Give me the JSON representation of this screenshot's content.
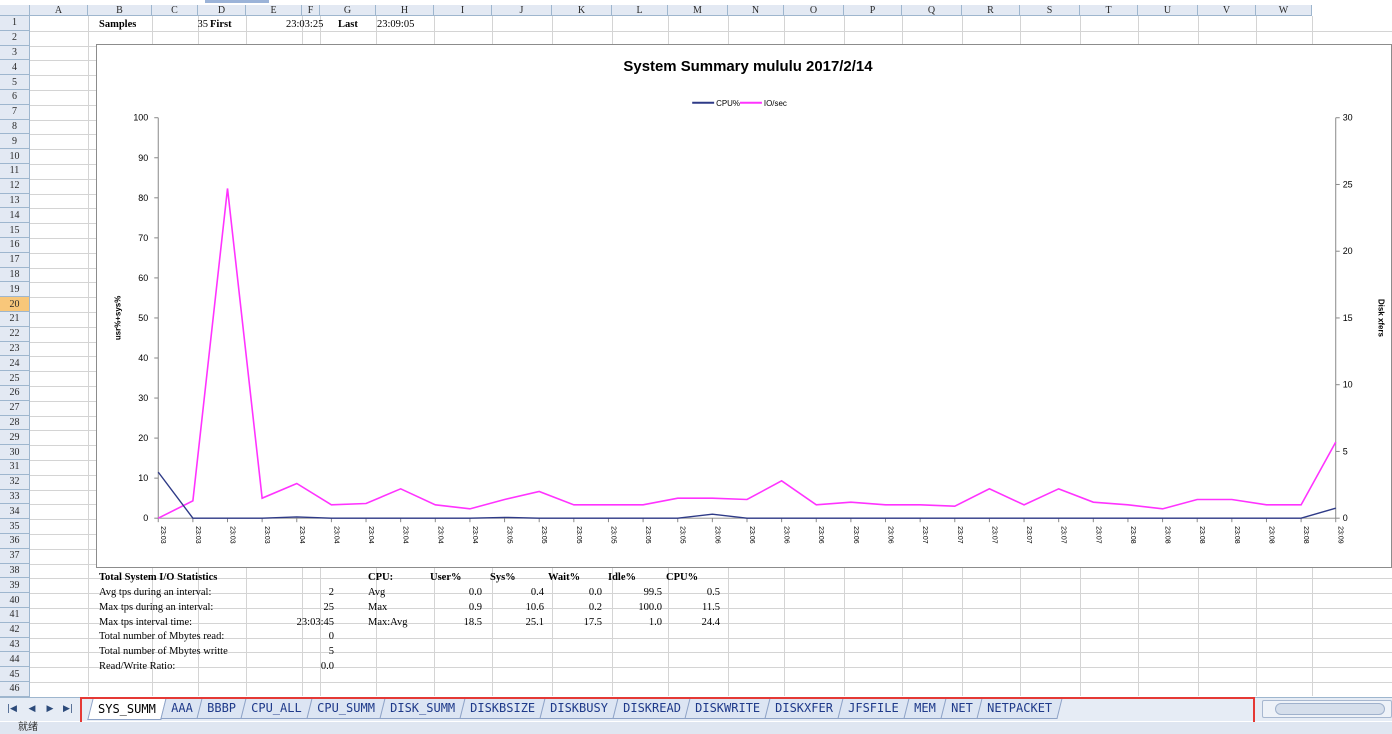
{
  "sheet": {
    "columns": [
      "A",
      "B",
      "C",
      "D",
      "E",
      "F",
      "G",
      "H",
      "I",
      "J",
      "K",
      "L",
      "M",
      "N",
      "O",
      "P",
      "Q",
      "R",
      "S",
      "T",
      "U",
      "V",
      "W"
    ],
    "rows": [
      "1",
      "2",
      "3",
      "4",
      "5",
      "6",
      "7",
      "8",
      "9",
      "10",
      "11",
      "12",
      "13",
      "14",
      "15",
      "16",
      "17",
      "18",
      "19",
      "20",
      "21",
      "22",
      "23",
      "24",
      "25",
      "26",
      "27",
      "28",
      "29",
      "30",
      "31",
      "32",
      "33",
      "34",
      "35",
      "36",
      "37",
      "38",
      "39",
      "40",
      "41",
      "42",
      "43",
      "44",
      "45",
      "46"
    ],
    "selected_row": "20"
  },
  "header_row": {
    "samples_label": "Samples",
    "samples_value": "35",
    "first_label": "First",
    "first_value": "23:03:25",
    "last_label": "Last",
    "last_value": "23:09:05"
  },
  "io_stats": {
    "title": "Total System I/O Statistics",
    "rows": [
      {
        "label": "Avg tps during an interval:",
        "value": "2"
      },
      {
        "label": "Max tps during an interval:",
        "value": "25"
      },
      {
        "label": "Max tps interval time:",
        "value": "23:03:45"
      },
      {
        "label": "Total number of Mbytes read:",
        "value": "0"
      },
      {
        "label": "Total number of Mbytes writte",
        "value": "5"
      },
      {
        "label": "Read/Write Ratio:",
        "value": "0.0"
      }
    ]
  },
  "cpu_table": {
    "headers": [
      "CPU:",
      "User%",
      "Sys%",
      "Wait%",
      "Idle%",
      "CPU%"
    ],
    "rows": [
      [
        "Avg",
        "0.0",
        "0.4",
        "0.0",
        "99.5",
        "0.5"
      ],
      [
        "Max",
        "0.9",
        "10.6",
        "0.2",
        "100.0",
        "11.5"
      ],
      [
        "Max:Avg",
        "18.5",
        "25.1",
        "17.5",
        "1.0",
        "24.4"
      ]
    ]
  },
  "chart_data": {
    "type": "line",
    "title": "System Summary mululu  2017/2/14",
    "ylabel": "usr%+sys%",
    "y2label": "Disk xfers",
    "ylim": [
      0,
      100
    ],
    "y2lim": [
      0,
      30
    ],
    "yticks": [
      "0",
      "10",
      "20",
      "30",
      "40",
      "50",
      "60",
      "70",
      "80",
      "90",
      "100"
    ],
    "y2ticks": [
      "0",
      "5",
      "10",
      "15",
      "20",
      "25",
      "30"
    ],
    "legend_position": "top-center",
    "categories": [
      "23:03",
      "23:03",
      "23:03",
      "23:03",
      "23:04",
      "23:04",
      "23:04",
      "23:04",
      "23:04",
      "23:04",
      "23:05",
      "23:05",
      "23:05",
      "23:05",
      "23:05",
      "23:05",
      "23:06",
      "23:06",
      "23:06",
      "23:06",
      "23:06",
      "23:06",
      "23:07",
      "23:07",
      "23:07",
      "23:07",
      "23:07",
      "23:07",
      "23:08",
      "23:08",
      "23:08",
      "23:08",
      "23:08",
      "23:08",
      "23:09"
    ],
    "series": [
      {
        "name": "CPU%",
        "axis": "left",
        "color": "#2e3a87",
        "values": [
          11.5,
          0,
          0,
          0,
          0.3,
          0,
          0,
          0,
          0,
          0,
          0.2,
          0,
          0,
          0,
          0,
          0,
          1,
          0,
          0,
          0,
          0,
          0,
          0,
          0,
          0,
          0,
          0,
          0,
          0,
          0,
          0,
          0,
          0,
          0,
          2.5
        ]
      },
      {
        "name": "IO/sec",
        "axis": "right",
        "color": "#ff33ff",
        "values": [
          0,
          1.3,
          24.7,
          1.5,
          2.6,
          1.0,
          1.1,
          2.2,
          1.0,
          0.7,
          1.4,
          2.0,
          1.0,
          1.0,
          1.0,
          1.5,
          1.5,
          1.4,
          2.8,
          1.0,
          1.2,
          1.0,
          1.0,
          0.9,
          2.2,
          1.0,
          2.2,
          1.2,
          1.0,
          0.7,
          1.4,
          1.4,
          1.0,
          1.0,
          5.7
        ]
      }
    ]
  },
  "sheet_tabs": [
    "SYS_SUMM",
    "AAA",
    "BBBP",
    "CPU_ALL",
    "CPU_SUMM",
    "DISK_SUMM",
    "DISKBSIZE",
    "DISKBUSY",
    "DISKREAD",
    "DISKWRITE",
    "DISKXFER",
    "JFSFILE",
    "MEM",
    "NET",
    "NETPACKET"
  ],
  "active_tab": "SYS_SUMM",
  "status": {
    "text": "就绪"
  },
  "colors": {
    "header_bg": "#e3e9f3",
    "tab_text": "#1f3a8a",
    "highlight_box": "#e53935"
  }
}
